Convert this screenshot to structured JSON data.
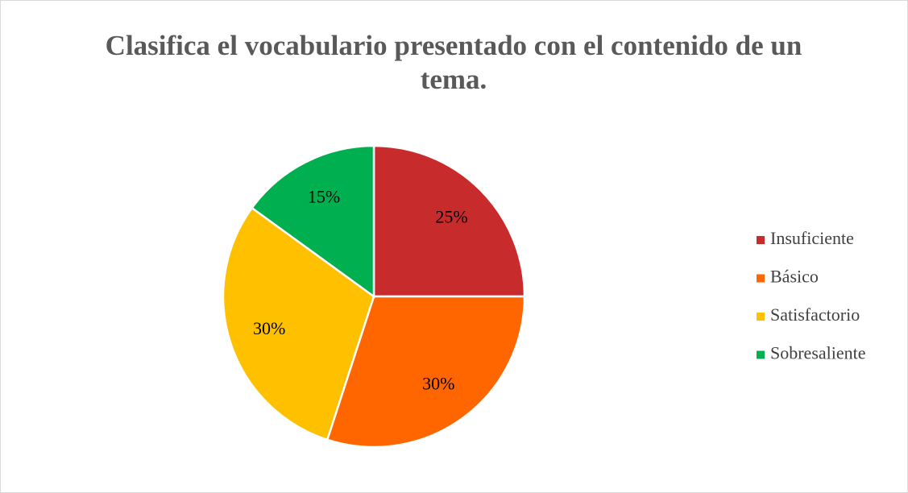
{
  "chart_data": {
    "type": "pie",
    "title": "Clasifica el vocabulario presentado con el contenido de un tema.",
    "categories": [
      "Insuficiente",
      "Básico",
      "Satisfactorio",
      "Sobresaliente"
    ],
    "values": [
      25,
      30,
      30,
      15
    ],
    "value_labels": [
      "25%",
      "30%",
      "30%",
      "15%"
    ],
    "colors": [
      "#c82b2b",
      "#ff6600",
      "#ffc000",
      "#00b050"
    ],
    "legend": "right"
  }
}
